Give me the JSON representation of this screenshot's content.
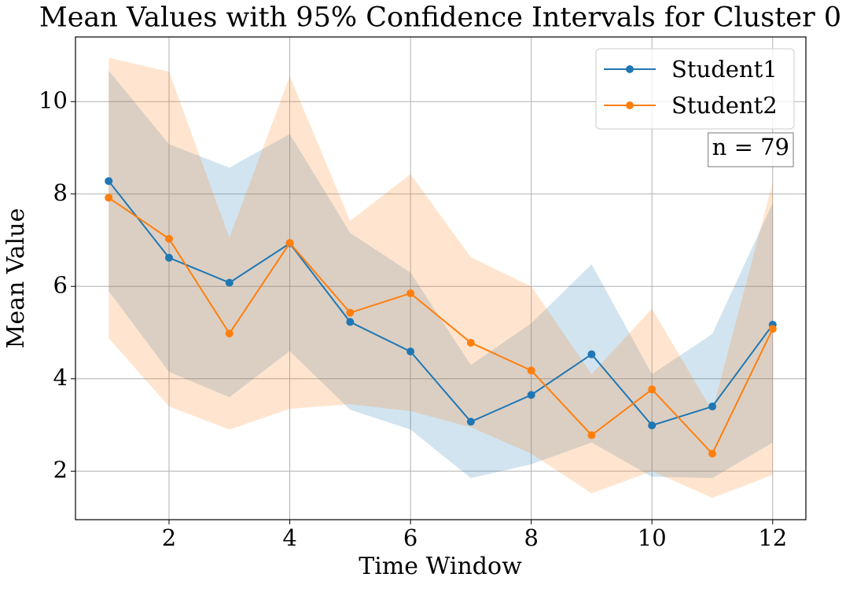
{
  "chart_data": {
    "type": "line",
    "title": "Mean Values with 95% Confidence Intervals for Cluster 0",
    "x_label": "Time Window",
    "y_label": "Mean Value",
    "annotation": "n = 79",
    "x": [
      1,
      2,
      3,
      4,
      5,
      6,
      7,
      8,
      9,
      10,
      11,
      12
    ],
    "series": [
      {
        "name": "Student1",
        "color": "#1f77b4",
        "values": [
          8.28,
          6.62,
          6.08,
          6.93,
          5.23,
          4.59,
          3.07,
          3.65,
          4.53,
          2.99,
          3.4,
          5.17
        ],
        "upper": [
          10.67,
          9.08,
          8.57,
          9.3,
          7.16,
          6.3,
          4.3,
          5.2,
          6.48,
          4.1,
          4.97,
          7.8
        ],
        "lower": [
          5.9,
          4.15,
          3.6,
          4.6,
          3.33,
          2.9,
          1.85,
          2.15,
          2.62,
          1.88,
          1.85,
          2.62
        ]
      },
      {
        "name": "Student2",
        "color": "#ff7f0e",
        "values": [
          7.92,
          7.03,
          4.98,
          6.94,
          5.43,
          5.85,
          4.78,
          4.18,
          2.78,
          3.77,
          2.38,
          5.08
        ],
        "upper": [
          10.95,
          10.65,
          7.05,
          10.55,
          7.42,
          8.43,
          6.63,
          6.0,
          4.1,
          5.52,
          3.3,
          8.25
        ],
        "lower": [
          4.88,
          3.4,
          2.9,
          3.35,
          3.45,
          3.3,
          2.95,
          2.38,
          1.52,
          2.0,
          1.42,
          1.92
        ]
      }
    ],
    "xlim": [
      0.45,
      12.55
    ],
    "ylim": [
      0.95,
      11.4
    ],
    "xticks": [
      2,
      4,
      6,
      8,
      10,
      12
    ],
    "yticks": [
      2,
      4,
      6,
      8,
      10
    ],
    "grid": true,
    "legend": "upper right",
    "band_opacity": 0.2
  }
}
